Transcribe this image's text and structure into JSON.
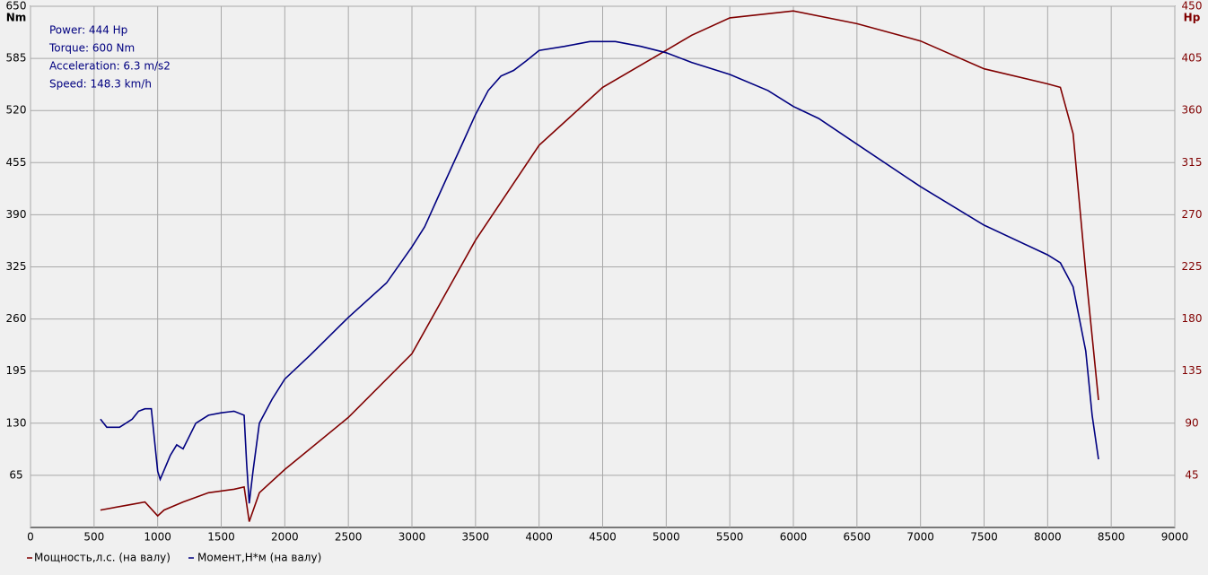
{
  "chart_data": {
    "type": "line",
    "xlabel_units": null,
    "ylabel": "Nm",
    "y2label": "Hp",
    "annotations": [
      "Power: 444 Hp",
      "Torque: 600 Nm",
      "Acceleration: 6.3 m/s2",
      "Speed: 148.3 km/h"
    ],
    "xlim": [
      0,
      9000
    ],
    "xticks": [
      0,
      500,
      1000,
      1500,
      2000,
      2500,
      3000,
      3500,
      4000,
      4500,
      5000,
      5500,
      6000,
      6500,
      7000,
      7500,
      8000,
      8500,
      9000
    ],
    "ylim": [
      0,
      650
    ],
    "yticks": [
      65,
      130,
      195,
      260,
      325,
      390,
      455,
      520,
      585,
      650
    ],
    "y2lim": [
      0,
      450
    ],
    "y2ticks": [
      45,
      90,
      135,
      180,
      225,
      270,
      315,
      360,
      405,
      450
    ],
    "grid": true,
    "series": [
      {
        "name": "Мощность,л.с. (на валу)",
        "color": "#800000",
        "axis": "y2",
        "x": [
          550,
          800,
          900,
          1000,
          1050,
          1200,
          1400,
          1600,
          1680,
          1720,
          1800,
          2000,
          2500,
          3000,
          3500,
          4000,
          4500,
          5000,
          5200,
          5500,
          6000,
          6500,
          7000,
          7500,
          8000,
          8100,
          8200,
          8300,
          8400
        ],
        "values": [
          15,
          20,
          22,
          10,
          15,
          22,
          30,
          33,
          35,
          5,
          30,
          50,
          95,
          150,
          248,
          330,
          380,
          412,
          425,
          440,
          446,
          435,
          420,
          396,
          383,
          380,
          340,
          220,
          110
        ]
      },
      {
        "name": "Момент,Н*м (на валу)",
        "color": "#000080",
        "x": [
          550,
          600,
          700,
          800,
          850,
          900,
          950,
          1000,
          1020,
          1100,
          1150,
          1200,
          1300,
          1400,
          1500,
          1600,
          1680,
          1700,
          1720,
          1750,
          1800,
          1900,
          2000,
          2200,
          2500,
          2800,
          3000,
          3100,
          3200,
          3300,
          3400,
          3500,
          3600,
          3700,
          3800,
          3900,
          4000,
          4200,
          4400,
          4600,
          4800,
          5000,
          5200,
          5500,
          5800,
          6000,
          6200,
          6500,
          7000,
          7500,
          8000,
          8100,
          8200,
          8300,
          8350,
          8400
        ],
        "values": [
          135,
          125,
          125,
          135,
          145,
          148,
          148,
          70,
          60,
          90,
          103,
          98,
          130,
          140,
          143,
          145,
          140,
          80,
          30,
          70,
          130,
          160,
          185,
          215,
          262,
          305,
          350,
          375,
          410,
          445,
          480,
          515,
          545,
          563,
          570,
          582,
          595,
          600,
          606,
          606,
          600,
          592,
          580,
          565,
          545,
          525,
          510,
          478,
          425,
          377,
          340,
          330,
          300,
          220,
          140,
          85
        ]
      }
    ]
  }
}
